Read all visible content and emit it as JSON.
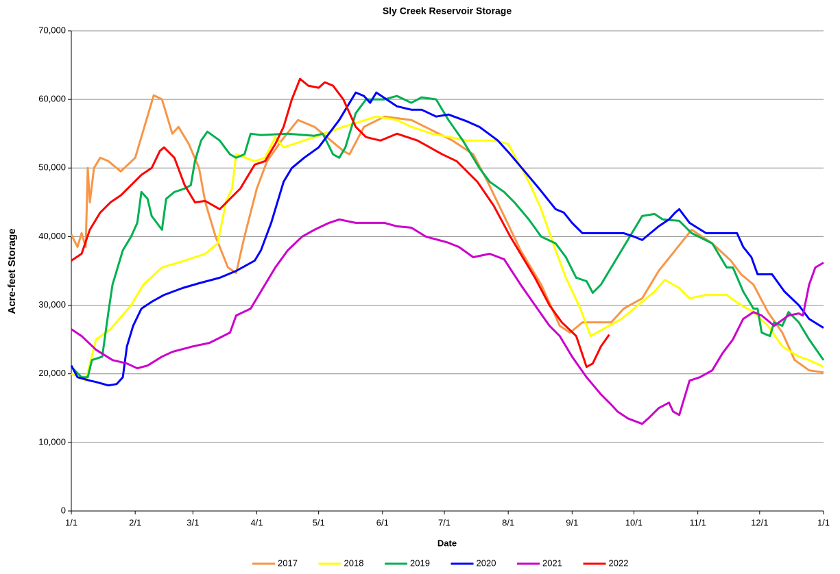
{
  "chart_data": {
    "type": "line",
    "title": "Sly Creek Reservoir Storage",
    "x_label": "Date",
    "y_label": "Acre-feet Storage",
    "xlim": [
      0,
      365
    ],
    "xticks": [
      {
        "value": 0,
        "label": "1/1"
      },
      {
        "value": 31,
        "label": "2/1"
      },
      {
        "value": 59,
        "label": "3/1"
      },
      {
        "value": 90,
        "label": "4/1"
      },
      {
        "value": 120,
        "label": "5/1"
      },
      {
        "value": 151,
        "label": "6/1"
      },
      {
        "value": 181,
        "label": "7/1"
      },
      {
        "value": 212,
        "label": "8/1"
      },
      {
        "value": 243,
        "label": "9/1"
      },
      {
        "value": 273,
        "label": "10/1"
      },
      {
        "value": 304,
        "label": "11/1"
      },
      {
        "value": 334,
        "label": "12/1"
      },
      {
        "value": 365,
        "label": "1/1"
      }
    ],
    "ylim": [
      0,
      70000
    ],
    "yticks": [
      0,
      {
        "value": 10000,
        "label": "10,000"
      },
      {
        "value": 20000,
        "label": "20,000"
      },
      {
        "value": 30000,
        "label": "30,000"
      },
      {
        "value": 40000,
        "label": "40,000"
      },
      {
        "value": 50000,
        "label": "50,000"
      },
      {
        "value": 60000,
        "label": "60,000"
      },
      {
        "value": 70000,
        "label": "70,000"
      }
    ],
    "grid": true,
    "legend": "bottom",
    "series": [
      {
        "name": "2017",
        "color": "#f79646",
        "x": [
          0,
          3,
          5,
          7,
          8,
          9,
          11,
          14,
          18,
          24,
          31,
          40,
          44,
          49,
          52,
          57,
          62,
          65,
          70,
          76,
          80,
          84,
          90,
          95,
          102,
          110,
          118,
          132,
          135,
          142,
          152,
          165,
          175,
          185,
          195,
          202,
          210,
          218,
          228,
          237,
          242,
          248,
          262,
          268,
          277,
          285,
          293,
          301,
          311,
          320,
          325,
          331,
          338,
          345,
          351,
          358,
          365
        ],
        "values": [
          40300,
          38500,
          40500,
          38500,
          50000,
          45000,
          50000,
          51500,
          51000,
          49500,
          51500,
          60600,
          60000,
          55000,
          56000,
          53500,
          50000,
          45000,
          40000,
          35500,
          34700,
          40000,
          47000,
          51000,
          54000,
          57000,
          56000,
          52500,
          52000,
          56000,
          57500,
          57000,
          55500,
          54000,
          52000,
          48000,
          43000,
          38000,
          33000,
          27000,
          26000,
          27500,
          27500,
          29500,
          31000,
          35000,
          38000,
          41000,
          39000,
          36500,
          34500,
          33000,
          29000,
          26000,
          22000,
          20500,
          20200
        ]
      },
      {
        "name": "2018",
        "color": "#ffff00",
        "x": [
          0,
          5,
          7,
          12,
          19,
          29,
          35,
          44,
          55,
          65,
          71,
          75,
          78,
          80,
          89,
          94,
          99,
          103,
          108,
          118,
          132,
          148,
          158,
          165,
          175,
          192,
          205,
          212,
          222,
          228,
          235,
          240,
          247,
          252,
          258,
          267,
          275,
          283,
          288,
          295,
          300,
          308,
          318,
          325,
          331,
          338,
          345,
          353,
          358,
          365
        ],
        "values": [
          20000,
          19500,
          19000,
          25000,
          26500,
          30000,
          33000,
          35500,
          36500,
          37500,
          39000,
          45000,
          47000,
          52000,
          51000,
          51500,
          54500,
          53000,
          53500,
          54500,
          56000,
          57500,
          57000,
          56000,
          55000,
          54000,
          54000,
          53500,
          48000,
          44000,
          38000,
          34000,
          29500,
          25500,
          26500,
          28000,
          30000,
          32000,
          33700,
          32500,
          31000,
          31500,
          31500,
          30000,
          29000,
          27000,
          24000,
          22500,
          22000,
          21000
        ]
      },
      {
        "name": "2019",
        "color": "#00b050",
        "x": [
          0,
          5,
          8,
          10,
          15,
          18,
          20,
          25,
          29,
          32,
          34,
          37,
          39,
          44,
          46,
          50,
          55,
          58,
          60,
          63,
          66,
          72,
          77,
          80,
          84,
          87,
          92,
          105,
          118,
          122,
          127,
          130,
          133,
          138,
          143,
          152,
          158,
          165,
          170,
          177,
          183,
          190,
          198,
          203,
          210,
          215,
          222,
          228,
          235,
          240,
          245,
          250,
          253,
          257,
          263,
          268,
          272,
          277,
          283,
          287,
          295,
          301,
          311,
          318,
          321,
          326,
          331,
          333,
          335,
          339,
          341,
          345,
          348,
          353,
          358,
          365
        ],
        "values": [
          21000,
          19500,
          19500,
          22000,
          22500,
          29000,
          33000,
          38000,
          40000,
          42000,
          46500,
          45500,
          43000,
          41000,
          45500,
          46500,
          47000,
          47500,
          51000,
          54000,
          55300,
          54000,
          52000,
          51500,
          52000,
          55000,
          54800,
          55000,
          54700,
          55000,
          52000,
          51500,
          53000,
          58000,
          60000,
          60000,
          60500,
          59500,
          60300,
          60000,
          57000,
          54000,
          50000,
          48000,
          46500,
          45000,
          42500,
          40000,
          39000,
          37000,
          34000,
          33500,
          31800,
          33000,
          36000,
          38500,
          40500,
          43000,
          43300,
          42500,
          42300,
          40500,
          39000,
          35500,
          35500,
          32000,
          29500,
          29500,
          26000,
          25500,
          27500,
          27000,
          29000,
          27500,
          25000,
          22000
        ]
      },
      {
        "name": "2020",
        "color": "#0000ff",
        "x": [
          0,
          3,
          9,
          12,
          18,
          22,
          25,
          27,
          30,
          34,
          39,
          45,
          54,
          62,
          72,
          80,
          89,
          92,
          97,
          100,
          103,
          107,
          113,
          120,
          125,
          130,
          133,
          138,
          142,
          145,
          148,
          153,
          158,
          165,
          170,
          177,
          183,
          192,
          198,
          207,
          213,
          220,
          227,
          235,
          239,
          243,
          248,
          268,
          273,
          277,
          285,
          290,
          293,
          295,
          300,
          308,
          323,
          326,
          330,
          333,
          340,
          346,
          353,
          358,
          365
        ],
        "values": [
          21200,
          19500,
          19000,
          18800,
          18300,
          18500,
          19500,
          24000,
          27000,
          29500,
          30500,
          31500,
          32500,
          33200,
          34000,
          35000,
          36500,
          38000,
          42000,
          45000,
          48000,
          50000,
          51500,
          53000,
          55000,
          57000,
          58500,
          61000,
          60500,
          59500,
          61000,
          60000,
          59000,
          58500,
          58500,
          57500,
          57800,
          56800,
          56000,
          54000,
          52000,
          49500,
          47000,
          44000,
          43500,
          42000,
          40500,
          40500,
          40000,
          39500,
          41500,
          42500,
          43500,
          44000,
          42000,
          40500,
          40500,
          38500,
          37000,
          34500,
          34500,
          32000,
          30000,
          28000,
          26700
        ]
      },
      {
        "name": "2021",
        "color": "#cc00cc",
        "x": [
          0,
          5,
          12,
          20,
          27,
          32,
          37,
          44,
          49,
          59,
          67,
          77,
          80,
          87,
          92,
          99,
          105,
          112,
          118,
          125,
          130,
          138,
          152,
          158,
          165,
          172,
          182,
          188,
          195,
          203,
          210,
          218,
          225,
          232,
          237,
          243,
          250,
          257,
          262,
          265,
          270,
          277,
          280,
          285,
          290,
          292,
          295,
          300,
          305,
          311,
          316,
          321,
          326,
          331,
          335,
          341,
          348,
          353,
          355,
          358,
          361,
          365
        ],
        "values": [
          26500,
          25500,
          23500,
          22000,
          21500,
          20800,
          21200,
          22500,
          23200,
          24000,
          24500,
          26000,
          28500,
          29500,
          32000,
          35500,
          38000,
          40000,
          41000,
          42000,
          42500,
          42000,
          42000,
          41500,
          41300,
          40000,
          39200,
          38500,
          37000,
          37500,
          36700,
          33000,
          30000,
          27000,
          25500,
          22500,
          19500,
          17000,
          15500,
          14500,
          13500,
          12700,
          13500,
          15000,
          15800,
          14500,
          14000,
          19000,
          19500,
          20500,
          23000,
          25000,
          28000,
          29000,
          28500,
          27000,
          28500,
          28800,
          28500,
          33000,
          35500,
          36200
        ]
      },
      {
        "name": "2022",
        "color": "#ff0000",
        "x": [
          0,
          5,
          9,
          14,
          19,
          24,
          29,
          34,
          39,
          43,
          45,
          50,
          55,
          60,
          65,
          72,
          77,
          82,
          89,
          94,
          99,
          103,
          107,
          111,
          115,
          120,
          123,
          127,
          132,
          138,
          143,
          150,
          158,
          168,
          180,
          187,
          197,
          205,
          213,
          220,
          225,
          232,
          238,
          245,
          250,
          253,
          257,
          261
        ],
        "values": [
          36500,
          37500,
          41000,
          43500,
          45000,
          46000,
          47500,
          49000,
          50000,
          52500,
          53000,
          51500,
          47500,
          45000,
          45200,
          44000,
          45500,
          47000,
          50500,
          51000,
          53500,
          56000,
          60000,
          63000,
          62000,
          61700,
          62500,
          62000,
          60000,
          56000,
          54500,
          54000,
          55000,
          54000,
          52000,
          51000,
          48000,
          44500,
          40000,
          36500,
          34000,
          30000,
          27500,
          25500,
          21000,
          21500,
          24000,
          25700
        ]
      }
    ]
  }
}
